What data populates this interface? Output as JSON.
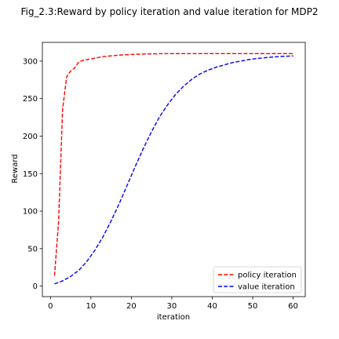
{
  "chart_data": {
    "type": "line",
    "title": "Fig_2.3:Reward by policy iteration and value iteration for MDP2",
    "xlabel": "iteration",
    "ylabel": "Reward",
    "xlim": [
      -2,
      63
    ],
    "ylim": [
      -14,
      325
    ],
    "xticks": [
      0,
      10,
      20,
      30,
      40,
      50,
      60
    ],
    "yticks": [
      0,
      50,
      100,
      150,
      200,
      250,
      300
    ],
    "grid": false,
    "legend_position": "lower-right",
    "series": [
      {
        "name": "policy iteration",
        "color": "#ff0000",
        "line_style": "dashed",
        "x": [
          1,
          2,
          3,
          4,
          5,
          6,
          7,
          8,
          9,
          10,
          11,
          12,
          13,
          14,
          15,
          16,
          17,
          18,
          19,
          20,
          21,
          22,
          23,
          24,
          25,
          26,
          27,
          28,
          29,
          30,
          35,
          40,
          45,
          50,
          55,
          60
        ],
        "y": [
          14,
          85,
          236,
          279,
          287,
          291,
          299,
          301,
          302,
          303,
          304,
          305,
          306,
          306.5,
          307,
          307.5,
          308,
          308.3,
          308.6,
          308.9,
          309.1,
          309.3,
          309.5,
          309.6,
          309.7,
          309.8,
          309.9,
          310,
          310,
          310,
          310,
          310,
          310,
          310,
          310,
          310
        ]
      },
      {
        "name": "value iteration",
        "color": "#0000ff",
        "line_style": "dashed",
        "x": [
          1,
          3,
          5,
          7,
          9,
          11,
          13,
          15,
          17,
          19,
          21,
          23,
          25,
          27,
          29,
          31,
          33,
          35,
          37,
          39,
          41,
          43,
          45,
          47,
          49,
          51,
          53,
          55,
          57,
          60
        ],
        "y": [
          3,
          7,
          13,
          21,
          33,
          48,
          66,
          87,
          110,
          135,
          160,
          184,
          206,
          226,
          242,
          256,
          267,
          276,
          283,
          288,
          292,
          295,
          298,
          300,
          302,
          303.5,
          304.5,
          305.5,
          306.2,
          307
        ]
      }
    ]
  }
}
